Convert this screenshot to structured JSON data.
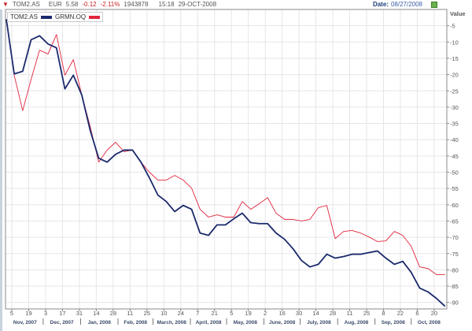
{
  "header": {
    "symbol": "TOM2.AS",
    "currency": "EUR",
    "price": "5.58",
    "change": "-0.12",
    "change_pct": "-2.11%",
    "volume": "1943878",
    "time": "15:18",
    "date": "29-OCT-2008",
    "date_label": "Date:",
    "selected_date": "08/27/2008",
    "export_icon": "excel-export-icon",
    "menu_icon": "triangle-down-icon"
  },
  "chart_data": {
    "type": "line",
    "ylabel": "Value",
    "ylim": [
      -92,
      0
    ],
    "yticks": [
      -5,
      -10,
      -15,
      -20,
      -25,
      -30,
      -35,
      -40,
      -45,
      -50,
      -55,
      -60,
      -65,
      -70,
      -75,
      -80,
      -85,
      -90
    ],
    "grid": true,
    "legend_position": "top-left",
    "x_ticks": [
      {
        "date": "2007-11-05",
        "label": "5"
      },
      {
        "date": "2007-11-19",
        "label": "19"
      },
      {
        "date": "2007-12-03",
        "label": "3"
      },
      {
        "date": "2007-12-17",
        "label": "17"
      },
      {
        "date": "2007-12-31",
        "label": "31"
      },
      {
        "date": "2008-01-14",
        "label": "14"
      },
      {
        "date": "2008-01-28",
        "label": "28"
      },
      {
        "date": "2008-02-11",
        "label": "11"
      },
      {
        "date": "2008-02-25",
        "label": "25"
      },
      {
        "date": "2008-03-10",
        "label": "10"
      },
      {
        "date": "2008-03-24",
        "label": "24"
      },
      {
        "date": "2008-04-07",
        "label": "7"
      },
      {
        "date": "2008-04-21",
        "label": "21"
      },
      {
        "date": "2008-05-05",
        "label": "5"
      },
      {
        "date": "2008-05-19",
        "label": "19"
      },
      {
        "date": "2008-06-02",
        "label": "2"
      },
      {
        "date": "2008-06-16",
        "label": "16"
      },
      {
        "date": "2008-06-30",
        "label": "30"
      },
      {
        "date": "2008-07-14",
        "label": "14"
      },
      {
        "date": "2008-07-28",
        "label": "28"
      },
      {
        "date": "2008-08-11",
        "label": "11"
      },
      {
        "date": "2008-08-25",
        "label": "25"
      },
      {
        "date": "2008-09-08",
        "label": "8"
      },
      {
        "date": "2008-09-22",
        "label": "22"
      },
      {
        "date": "2008-10-06",
        "label": "6"
      },
      {
        "date": "2008-10-20",
        "label": "20"
      }
    ],
    "months": [
      {
        "start": "2007-11-01",
        "end": "2007-12-01",
        "label": "Nov, 2007"
      },
      {
        "start": "2007-12-01",
        "end": "2008-01-01",
        "label": "Dec, 2007"
      },
      {
        "start": "2008-01-01",
        "end": "2008-02-01",
        "label": "Jan, 2008"
      },
      {
        "start": "2008-02-01",
        "end": "2008-03-01",
        "label": "Feb, 2008"
      },
      {
        "start": "2008-03-01",
        "end": "2008-04-01",
        "label": "March, 2008"
      },
      {
        "start": "2008-04-01",
        "end": "2008-05-01",
        "label": "April, 2008"
      },
      {
        "start": "2008-05-01",
        "end": "2008-06-01",
        "label": "May, 2008"
      },
      {
        "start": "2008-06-01",
        "end": "2008-07-01",
        "label": "June, 2008"
      },
      {
        "start": "2008-07-01",
        "end": "2008-08-01",
        "label": "July, 2008"
      },
      {
        "start": "2008-08-01",
        "end": "2008-09-01",
        "label": "Aug, 2008"
      },
      {
        "start": "2008-09-01",
        "end": "2008-10-01",
        "label": "Sep, 2008"
      },
      {
        "start": "2008-10-01",
        "end": "2008-11-01",
        "label": "Oct, 2008"
      }
    ],
    "dates": [
      "2007-10-31",
      "2007-11-07",
      "2007-11-14",
      "2007-11-21",
      "2007-11-28",
      "2007-12-05",
      "2007-12-12",
      "2007-12-19",
      "2007-12-26",
      "2008-01-02",
      "2008-01-09",
      "2008-01-16",
      "2008-01-23",
      "2008-01-30",
      "2008-02-06",
      "2008-02-13",
      "2008-02-20",
      "2008-02-27",
      "2008-03-05",
      "2008-03-12",
      "2008-03-19",
      "2008-03-26",
      "2008-04-02",
      "2008-04-09",
      "2008-04-16",
      "2008-04-23",
      "2008-04-30",
      "2008-05-07",
      "2008-05-14",
      "2008-05-21",
      "2008-05-28",
      "2008-06-04",
      "2008-06-11",
      "2008-06-18",
      "2008-06-25",
      "2008-07-02",
      "2008-07-09",
      "2008-07-16",
      "2008-07-23",
      "2008-07-30",
      "2008-08-06",
      "2008-08-13",
      "2008-08-20",
      "2008-08-27",
      "2008-09-03",
      "2008-09-10",
      "2008-09-17",
      "2008-09-24",
      "2008-10-01",
      "2008-10-08",
      "2008-10-15",
      "2008-10-22",
      "2008-10-29"
    ],
    "series": [
      {
        "name": "TOM2.AS",
        "color": "#1a2a6c",
        "values": [
          -3,
          -19.8,
          -19.0,
          -9.3,
          -8.1,
          -10.6,
          -11.8,
          -24.4,
          -20.2,
          -26.3,
          -37.2,
          -45.7,
          -46.9,
          -44.5,
          -43.2,
          -43.2,
          -46.9,
          -51.7,
          -57.0,
          -59.0,
          -62.1,
          -60.2,
          -61.4,
          -68.7,
          -69.4,
          -66.2,
          -66.2,
          -64.3,
          -62.6,
          -65.5,
          -65.8,
          -65.8,
          -68.7,
          -70.6,
          -73.5,
          -77.1,
          -79.1,
          -78.3,
          -75.2,
          -76.4,
          -75.9,
          -75.2,
          -75.2,
          -74.7,
          -74.2,
          -76.4,
          -78.3,
          -77.4,
          -80.8,
          -85.6,
          -86.8,
          -88.8,
          -91.2
        ]
      },
      {
        "name": "GRMN.OQ",
        "color": "#e0243c",
        "values": [
          -3,
          -20.2,
          -31.1,
          -21.5,
          -12.5,
          -13.7,
          -7.7,
          -20.2,
          -15.4,
          -26.3,
          -36.0,
          -46.9,
          -43.2,
          -40.8,
          -43.7,
          -43.2,
          -46.9,
          -50.0,
          -52.4,
          -52.4,
          -51.0,
          -52.4,
          -54.9,
          -61.4,
          -63.8,
          -63.1,
          -63.8,
          -63.8,
          -59.0,
          -61.4,
          -59.7,
          -57.8,
          -62.6,
          -64.5,
          -64.5,
          -65.0,
          -64.5,
          -60.9,
          -60.2,
          -70.4,
          -68.2,
          -67.9,
          -68.7,
          -69.9,
          -71.3,
          -71.1,
          -68.2,
          -69.4,
          -72.8,
          -79.1,
          -79.6,
          -81.5,
          -81.5
        ]
      }
    ]
  }
}
